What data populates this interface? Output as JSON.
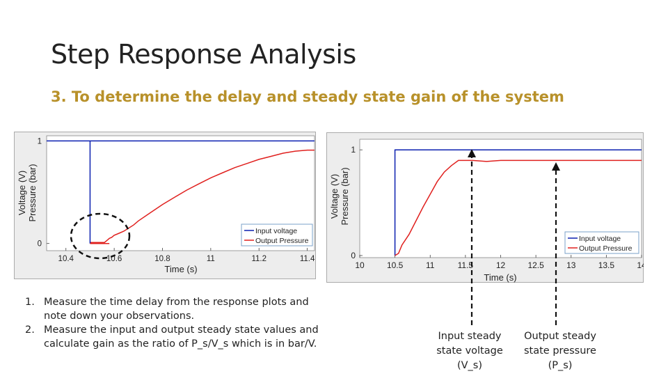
{
  "slide": {
    "title": "Step Response Analysis",
    "subtitle": "3.  To determine the delay and steady state gain of the system"
  },
  "steps": [
    {
      "number": "1.",
      "text": "Measure the time delay from the response plots and note down your observations."
    },
    {
      "number": "2.",
      "text": "Measure the input and output steady state values and calculate gain as the ratio of P_s/V_s which is in bar/V."
    }
  ],
  "callouts": {
    "input": {
      "line1": "Input steady",
      "line2": "state voltage",
      "line3": "(V_s)"
    },
    "output": {
      "line1": "Output steady",
      "line2": "state pressure",
      "line3": "(P_s)"
    }
  },
  "colors": {
    "subtitle": "#b8912a",
    "input_series": "#0a1fb0",
    "output_series": "#e0201e",
    "plot_frame": "#888888"
  },
  "chart_data": [
    {
      "type": "line",
      "xlabel": "Time (s)",
      "ylabel_lines": [
        "Voltage (V)",
        "Pressure (bar)"
      ],
      "xlim": [
        10.32,
        11.43
      ],
      "ylim": [
        -0.07,
        1.05
      ],
      "xticks": [
        10.4,
        10.6,
        10.8,
        11,
        11.2,
        11.4
      ],
      "xtick_labels": [
        "10.4",
        "10.6",
        "10.8",
        "11",
        "11.2",
        "11.4"
      ],
      "yticks": [
        0,
        1
      ],
      "ytick_labels": [
        "0",
        "1"
      ],
      "legend": {
        "position": "bottom-right",
        "entries": [
          "Input voltage",
          "Output Pressure"
        ]
      },
      "annotation": "dashed ellipse around delay region",
      "series": [
        {
          "name": "Input voltage",
          "color": "#0a1fb0",
          "x": [
            10.32,
            10.5,
            10.5,
            11.43
          ],
          "y": [
            1,
            1,
            1,
            1
          ]
        },
        {
          "name": "Output Pressure",
          "color": "#e0201e",
          "x": [
            10.5,
            10.53,
            10.56,
            10.57,
            10.58,
            10.59,
            10.6,
            10.62,
            10.64,
            10.66,
            10.68,
            10.7,
            10.75,
            10.8,
            10.85,
            10.9,
            10.95,
            11.0,
            11.05,
            11.1,
            11.15,
            11.2,
            11.25,
            11.3,
            11.35,
            11.4,
            11.43
          ],
          "y": [
            0.01,
            0.01,
            0.01,
            0.03,
            0.05,
            0.06,
            0.08,
            0.1,
            0.12,
            0.15,
            0.18,
            0.22,
            0.3,
            0.38,
            0.45,
            0.52,
            0.58,
            0.64,
            0.69,
            0.74,
            0.78,
            0.82,
            0.85,
            0.88,
            0.9,
            0.91,
            0.91
          ]
        }
      ]
    },
    {
      "type": "line",
      "xlabel": "Time (s)",
      "ylabel_lines": [
        "Voltage (V)",
        "Pressure (bar)"
      ],
      "xlim": [
        10,
        14
      ],
      "ylim": [
        -0.02,
        1.1
      ],
      "xticks": [
        10,
        10.5,
        11,
        11.5,
        12,
        12.5,
        13,
        13.5,
        14
      ],
      "xtick_labels": [
        "10",
        "10.5",
        "11",
        "11.5",
        "12",
        "12.5",
        "13",
        "13.5",
        "14"
      ],
      "yticks": [
        0,
        1
      ],
      "ytick_labels": [
        "0",
        "1"
      ],
      "legend": {
        "position": "bottom-right",
        "entries": [
          "Input voltage",
          "Output Pressure"
        ]
      },
      "annotation": "dashed arrows marking input and output steady state levels",
      "series": [
        {
          "name": "Input voltage",
          "color": "#0a1fb0",
          "x": [
            10.5,
            10.5,
            14
          ],
          "y": [
            0,
            1,
            1
          ]
        },
        {
          "name": "Output Pressure",
          "color": "#e0201e",
          "x": [
            10.5,
            10.55,
            10.6,
            10.7,
            10.8,
            10.9,
            11.0,
            11.1,
            11.2,
            11.3,
            11.4,
            11.5,
            11.6,
            11.8,
            12.0,
            12.5,
            13.0,
            13.5,
            14.0
          ],
          "y": [
            0.0,
            0.02,
            0.1,
            0.2,
            0.33,
            0.46,
            0.58,
            0.7,
            0.79,
            0.85,
            0.9,
            0.9,
            0.9,
            0.89,
            0.9,
            0.9,
            0.9,
            0.9,
            0.9
          ]
        }
      ]
    }
  ]
}
